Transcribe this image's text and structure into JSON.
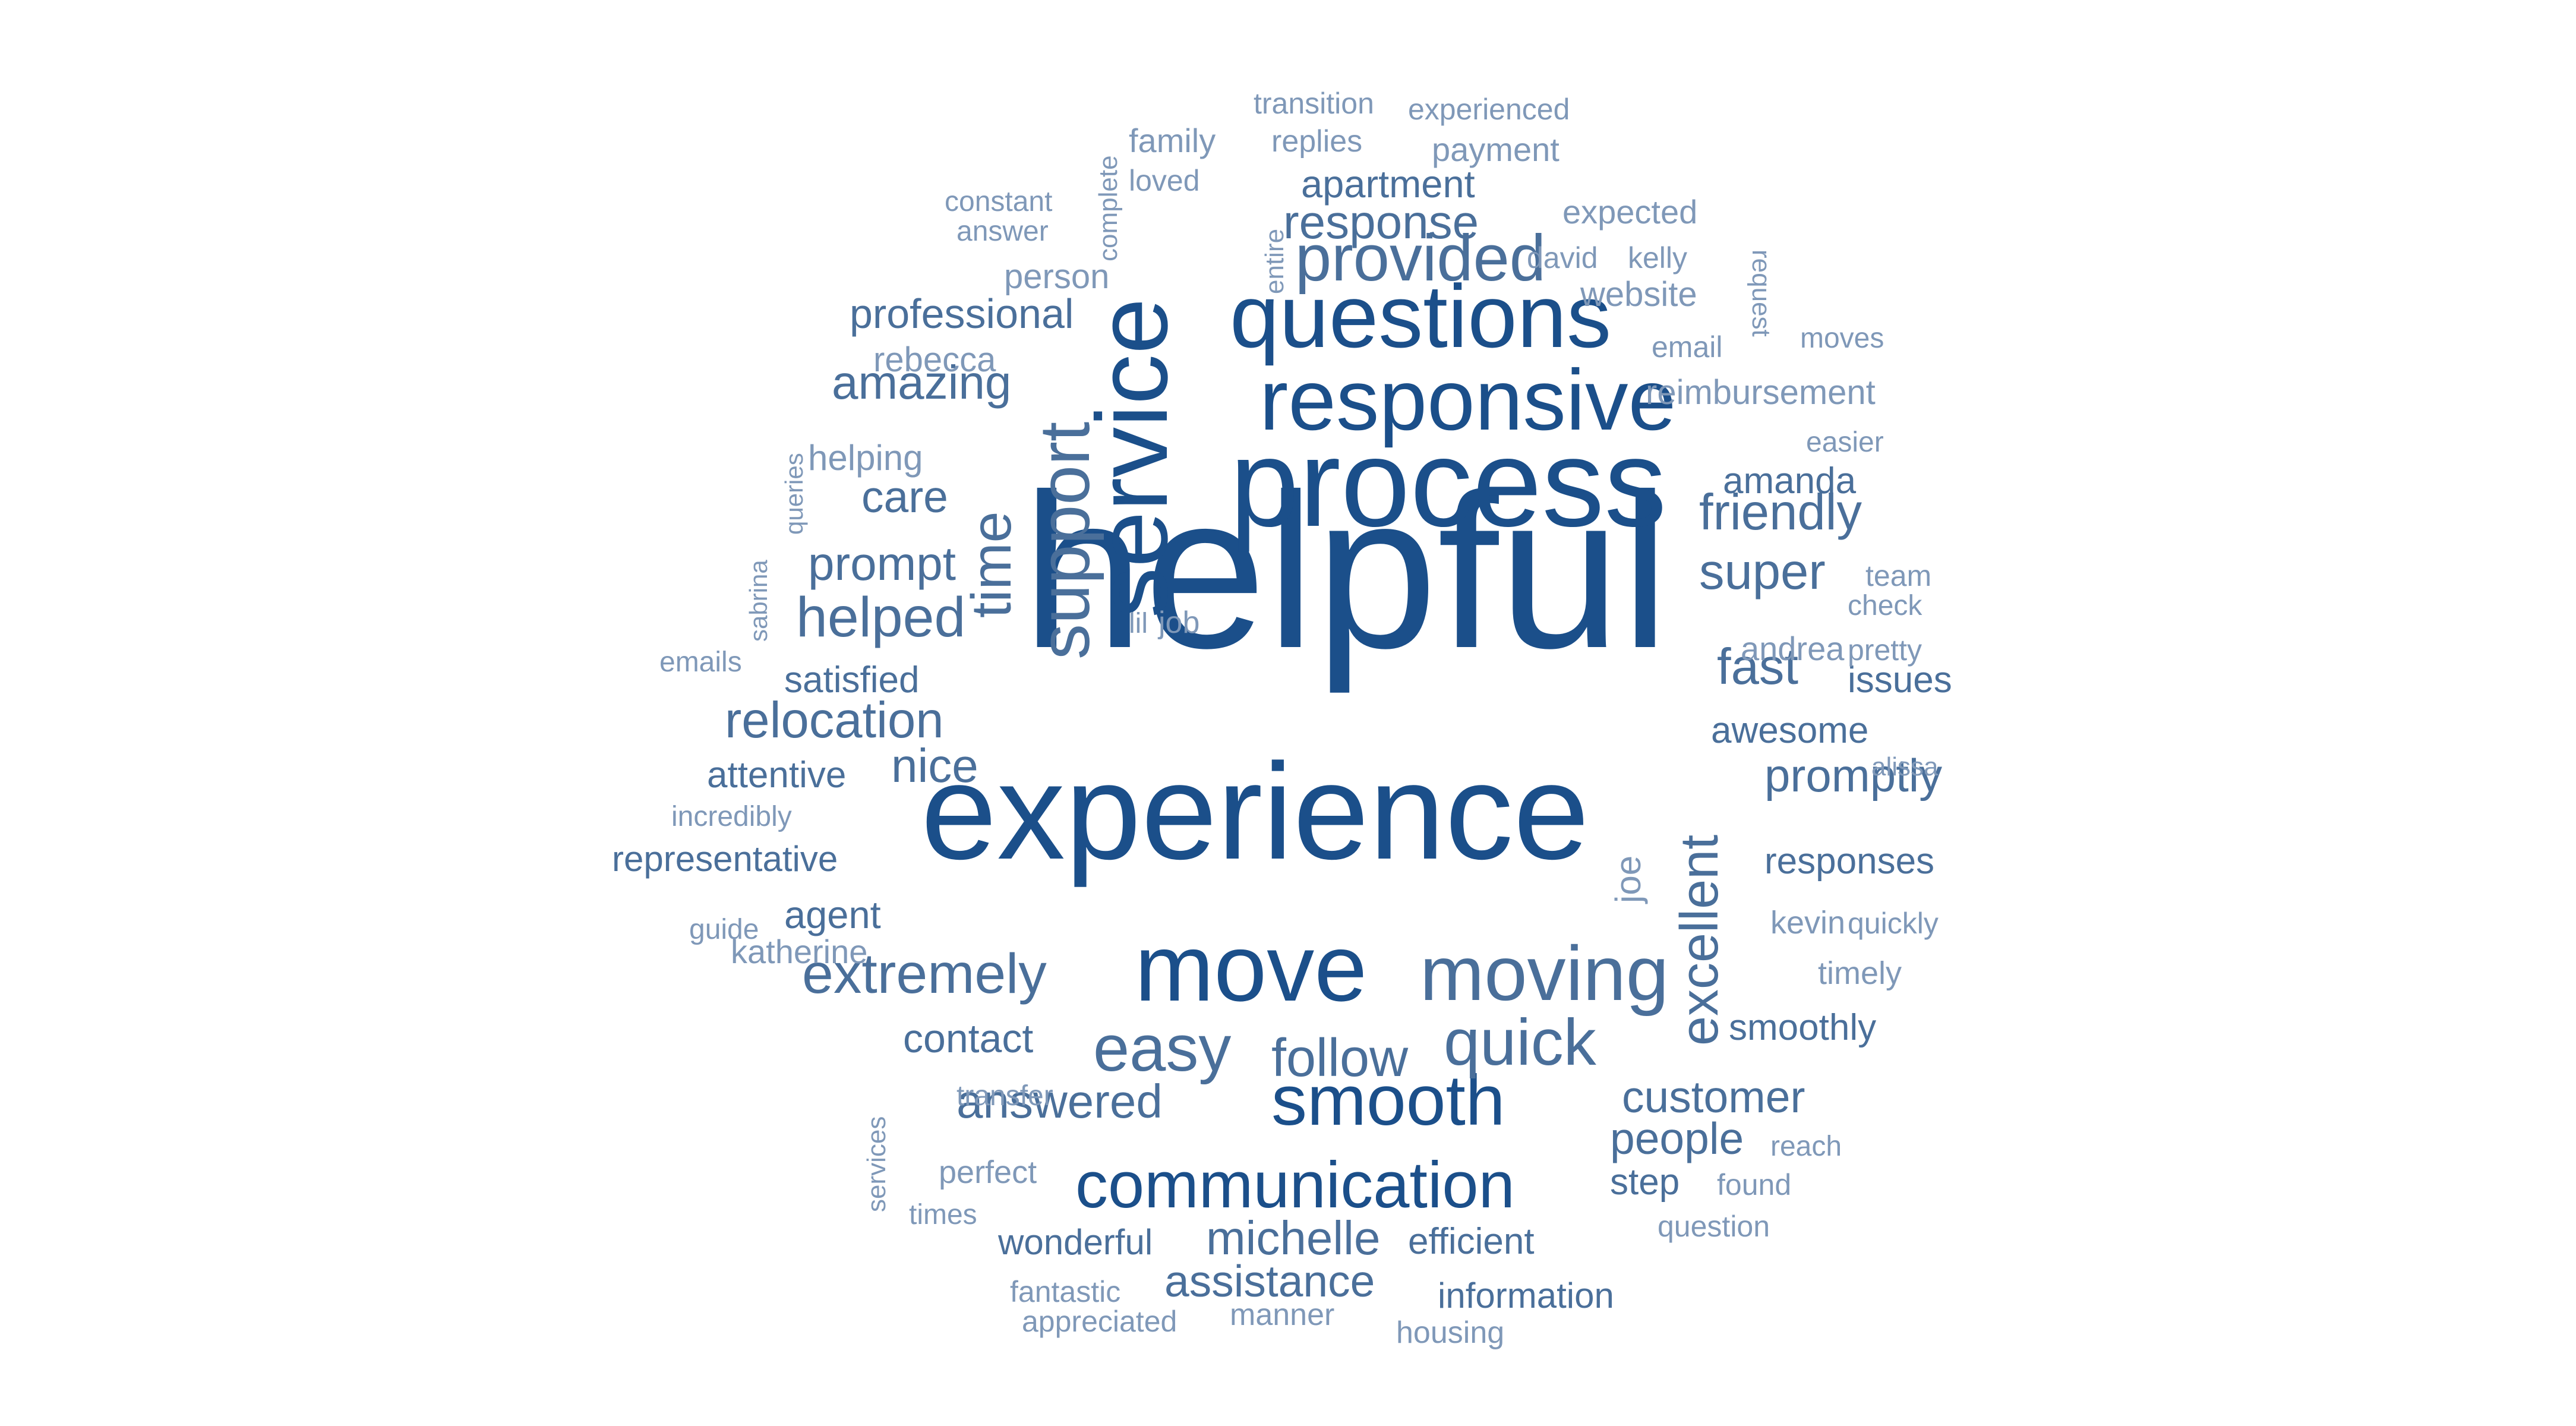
{
  "word_cloud": {
    "colors": {
      "primary": "#1b4f8a",
      "secondary": "#4a6f9a",
      "light": "#7f98b8"
    },
    "words": [
      {
        "text": "helpful",
        "weight": 100,
        "tone": "primary"
      },
      {
        "text": "experience",
        "weight": 62,
        "tone": "primary"
      },
      {
        "text": "process",
        "weight": 58,
        "tone": "primary"
      },
      {
        "text": "service",
        "weight": 50,
        "tone": "primary"
      },
      {
        "text": "questions",
        "weight": 46,
        "tone": "primary"
      },
      {
        "text": "responsive",
        "weight": 44,
        "tone": "primary"
      },
      {
        "text": "move",
        "weight": 44,
        "tone": "primary"
      },
      {
        "text": "moving",
        "weight": 40,
        "tone": "secondary"
      },
      {
        "text": "support",
        "weight": 36,
        "tone": "secondary"
      },
      {
        "text": "smooth",
        "weight": 36,
        "tone": "primary"
      },
      {
        "text": "communication",
        "weight": 35,
        "tone": "primary"
      },
      {
        "text": "quick",
        "weight": 34,
        "tone": "secondary"
      },
      {
        "text": "provided",
        "weight": 32,
        "tone": "secondary"
      },
      {
        "text": "easy",
        "weight": 32,
        "tone": "secondary"
      },
      {
        "text": "time",
        "weight": 30,
        "tone": "secondary"
      },
      {
        "text": "extremely",
        "weight": 28,
        "tone": "secondary"
      },
      {
        "text": "excellent",
        "weight": 28,
        "tone": "secondary"
      },
      {
        "text": "helped",
        "weight": 28,
        "tone": "secondary"
      },
      {
        "text": "follow",
        "weight": 27,
        "tone": "secondary"
      },
      {
        "text": "relocation",
        "weight": 26,
        "tone": "secondary"
      },
      {
        "text": "friendly",
        "weight": 26,
        "tone": "secondary"
      },
      {
        "text": "super",
        "weight": 25,
        "tone": "secondary"
      },
      {
        "text": "fast",
        "weight": 25,
        "tone": "secondary"
      },
      {
        "text": "response",
        "weight": 25,
        "tone": "secondary"
      },
      {
        "text": "answered",
        "weight": 25,
        "tone": "secondary"
      },
      {
        "text": "michelle",
        "weight": 24,
        "tone": "secondary"
      },
      {
        "text": "assistance",
        "weight": 24,
        "tone": "secondary"
      },
      {
        "text": "amazing",
        "weight": 24,
        "tone": "secondary"
      },
      {
        "text": "prompt",
        "weight": 24,
        "tone": "secondary"
      },
      {
        "text": "promptly",
        "weight": 24,
        "tone": "secondary"
      },
      {
        "text": "customer",
        "weight": 24,
        "tone": "secondary"
      },
      {
        "text": "people",
        "weight": 24,
        "tone": "secondary"
      },
      {
        "text": "nice",
        "weight": 24,
        "tone": "secondary"
      },
      {
        "text": "care",
        "weight": 22,
        "tone": "secondary"
      },
      {
        "text": "professional",
        "weight": 22,
        "tone": "secondary"
      },
      {
        "text": "apartment",
        "weight": 22,
        "tone": "secondary"
      },
      {
        "text": "contact",
        "weight": 22,
        "tone": "secondary"
      },
      {
        "text": "efficient",
        "weight": 21,
        "tone": "secondary"
      },
      {
        "text": "smoothly",
        "weight": 21,
        "tone": "secondary"
      },
      {
        "text": "responses",
        "weight": 21,
        "tone": "secondary"
      },
      {
        "text": "amanda",
        "weight": 20,
        "tone": "secondary"
      },
      {
        "text": "awesome",
        "weight": 20,
        "tone": "secondary"
      },
      {
        "text": "issues",
        "weight": 20,
        "tone": "secondary"
      },
      {
        "text": "satisfied",
        "weight": 20,
        "tone": "secondary"
      },
      {
        "text": "attentive",
        "weight": 20,
        "tone": "secondary"
      },
      {
        "text": "agent",
        "weight": 20,
        "tone": "secondary"
      },
      {
        "text": "information",
        "weight": 20,
        "tone": "secondary"
      },
      {
        "text": "wonderful",
        "weight": 20,
        "tone": "secondary"
      },
      {
        "text": "step",
        "weight": 20,
        "tone": "secondary"
      },
      {
        "text": "representative",
        "weight": 19,
        "tone": "secondary"
      },
      {
        "text": "helping",
        "weight": 18,
        "tone": "light"
      },
      {
        "text": "rebecca",
        "weight": 18,
        "tone": "light"
      },
      {
        "text": "website",
        "weight": 18,
        "tone": "light"
      },
      {
        "text": "reimbursement",
        "weight": 18,
        "tone": "light"
      },
      {
        "text": "person",
        "weight": 18,
        "tone": "light"
      },
      {
        "text": "payment",
        "weight": 18,
        "tone": "light"
      },
      {
        "text": "family",
        "weight": 18,
        "tone": "light"
      },
      {
        "text": "expected",
        "weight": 18,
        "tone": "light"
      },
      {
        "text": "andrea",
        "weight": 18,
        "tone": "light"
      },
      {
        "text": "pretty",
        "weight": 17,
        "tone": "light"
      },
      {
        "text": "timely",
        "weight": 17,
        "tone": "light"
      },
      {
        "text": "kevin",
        "weight": 17,
        "tone": "light"
      },
      {
        "text": "quickly",
        "weight": 16,
        "tone": "light"
      },
      {
        "text": "katherine",
        "weight": 17,
        "tone": "light"
      },
      {
        "text": "perfect",
        "weight": 17,
        "tone": "light"
      },
      {
        "text": "fantastic",
        "weight": 16,
        "tone": "light"
      },
      {
        "text": "appreciated",
        "weight": 16,
        "tone": "light"
      },
      {
        "text": "manner",
        "weight": 17,
        "tone": "light"
      },
      {
        "text": "housing",
        "weight": 17,
        "tone": "light"
      },
      {
        "text": "question",
        "weight": 16,
        "tone": "light"
      },
      {
        "text": "found",
        "weight": 16,
        "tone": "light"
      },
      {
        "text": "reach",
        "weight": 15,
        "tone": "light"
      },
      {
        "text": "transfer",
        "weight": 15,
        "tone": "light"
      },
      {
        "text": "times",
        "weight": 15,
        "tone": "light"
      },
      {
        "text": "joe",
        "weight": 18,
        "tone": "light"
      },
      {
        "text": "team",
        "weight": 16,
        "tone": "light"
      },
      {
        "text": "check",
        "weight": 15,
        "tone": "light"
      },
      {
        "text": "lil",
        "weight": 15,
        "tone": "light"
      },
      {
        "text": "job",
        "weight": 16,
        "tone": "light"
      },
      {
        "text": "emails",
        "weight": 15,
        "tone": "light"
      },
      {
        "text": "incredibly",
        "weight": 15,
        "tone": "light"
      },
      {
        "text": "guide",
        "weight": 15,
        "tone": "light"
      },
      {
        "text": "alissa",
        "weight": 14,
        "tone": "light"
      },
      {
        "text": "easier",
        "weight": 15,
        "tone": "light"
      },
      {
        "text": "moves",
        "weight": 15,
        "tone": "light"
      },
      {
        "text": "email",
        "weight": 15,
        "tone": "light"
      },
      {
        "text": "request",
        "weight": 14,
        "tone": "light"
      },
      {
        "text": "kelly",
        "weight": 15,
        "tone": "light"
      },
      {
        "text": "david",
        "weight": 15,
        "tone": "light"
      },
      {
        "text": "entire",
        "weight": 14,
        "tone": "light"
      },
      {
        "text": "constant",
        "weight": 15,
        "tone": "light"
      },
      {
        "text": "answer",
        "weight": 15,
        "tone": "light"
      },
      {
        "text": "complete",
        "weight": 14,
        "tone": "light"
      },
      {
        "text": "loved",
        "weight": 15,
        "tone": "light"
      },
      {
        "text": "replies",
        "weight": 15,
        "tone": "light"
      },
      {
        "text": "transition",
        "weight": 15,
        "tone": "light"
      },
      {
        "text": "experienced",
        "weight": 15,
        "tone": "light"
      },
      {
        "text": "queries",
        "weight": 14,
        "tone": "light"
      },
      {
        "text": "sabrina",
        "weight": 14,
        "tone": "light"
      },
      {
        "text": "services",
        "weight": 14,
        "tone": "light"
      }
    ]
  }
}
